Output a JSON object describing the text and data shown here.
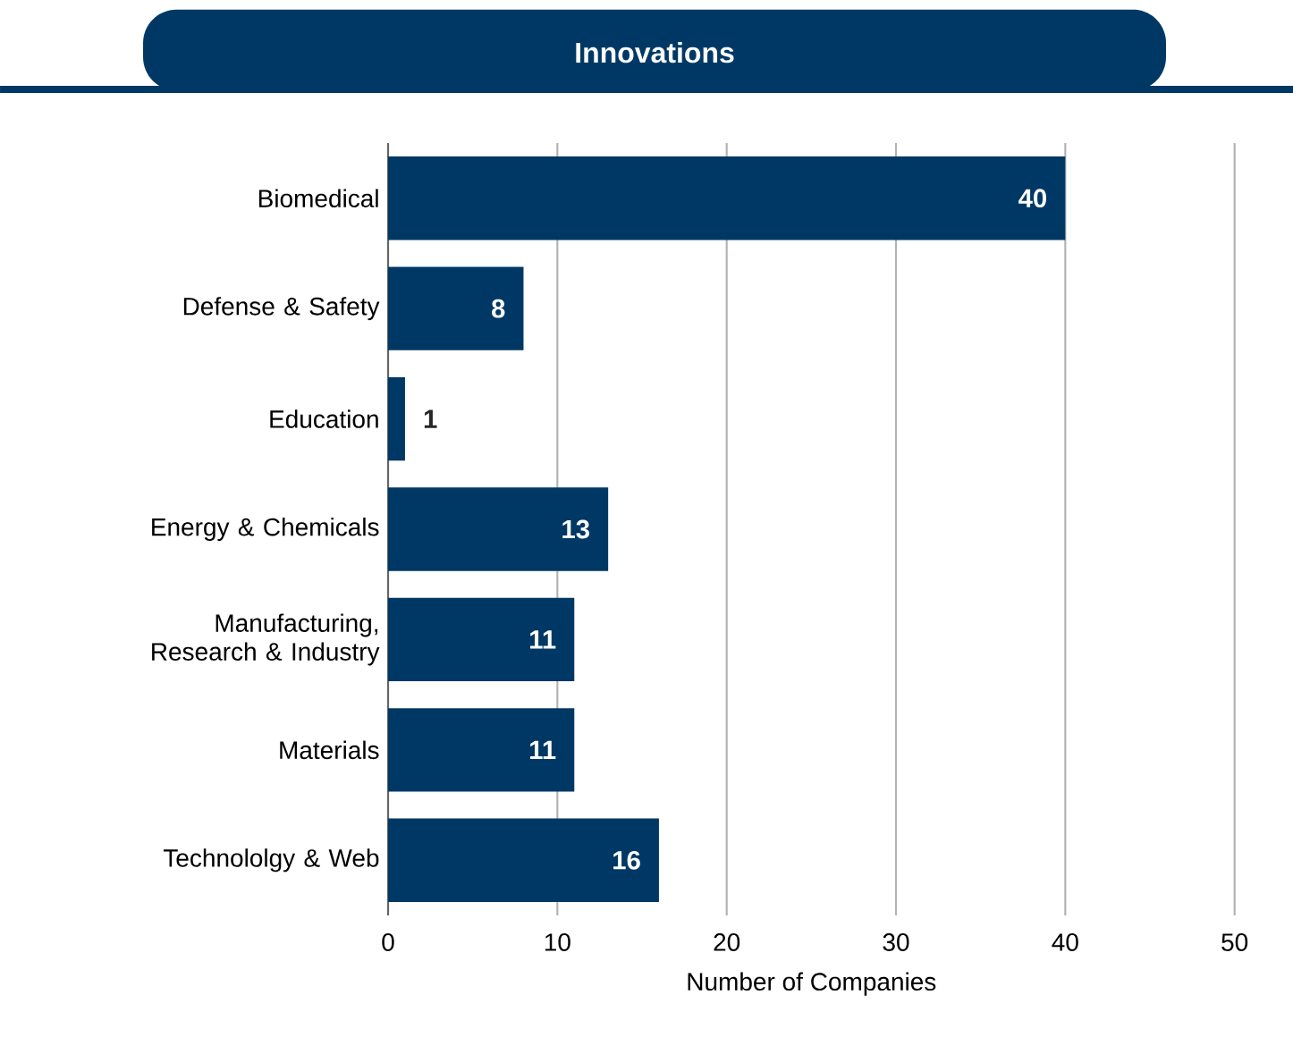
{
  "chart_data": {
    "type": "bar",
    "orientation": "horizontal",
    "title": "Innovations",
    "xlabel": "Number of Companies",
    "categories": [
      "Biomedical",
      "Defense & Safety",
      "Education",
      "Energy & Chemicals",
      "Manufacturing, Research & Industry",
      "Materials",
      "Technololgy & Web"
    ],
    "values": [
      40,
      8,
      1,
      13,
      11,
      11,
      16
    ],
    "color": "#003865",
    "xlim": [
      0,
      50
    ],
    "xticks": [
      0,
      10,
      20,
      30,
      40,
      50
    ],
    "grid": "x",
    "data_labels": true
  }
}
